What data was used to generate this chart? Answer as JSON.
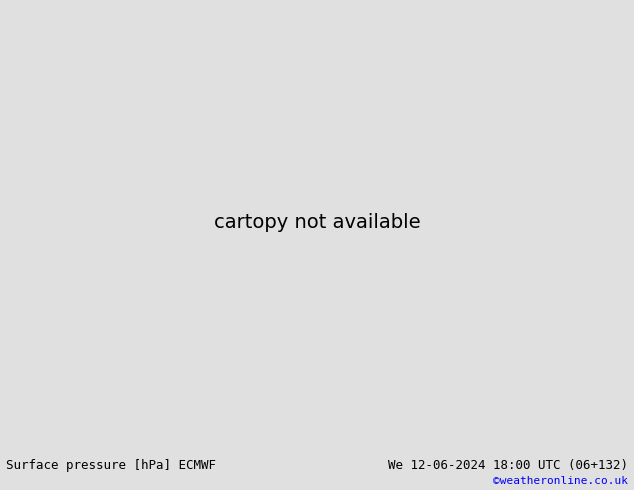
{
  "title_left": "Surface pressure [hPa] ECMWF",
  "title_right": "We 12-06-2024 18:00 UTC (06+132)",
  "copyright": "©weatheronline.co.uk",
  "land_color": "#aad4a0",
  "ocean_color": "#c8c8c8",
  "bottom_bar_color": "#e0e0e0",
  "figsize": [
    6.34,
    4.9
  ],
  "dpi": 100,
  "extent": [
    -22,
    62,
    -42,
    42
  ]
}
